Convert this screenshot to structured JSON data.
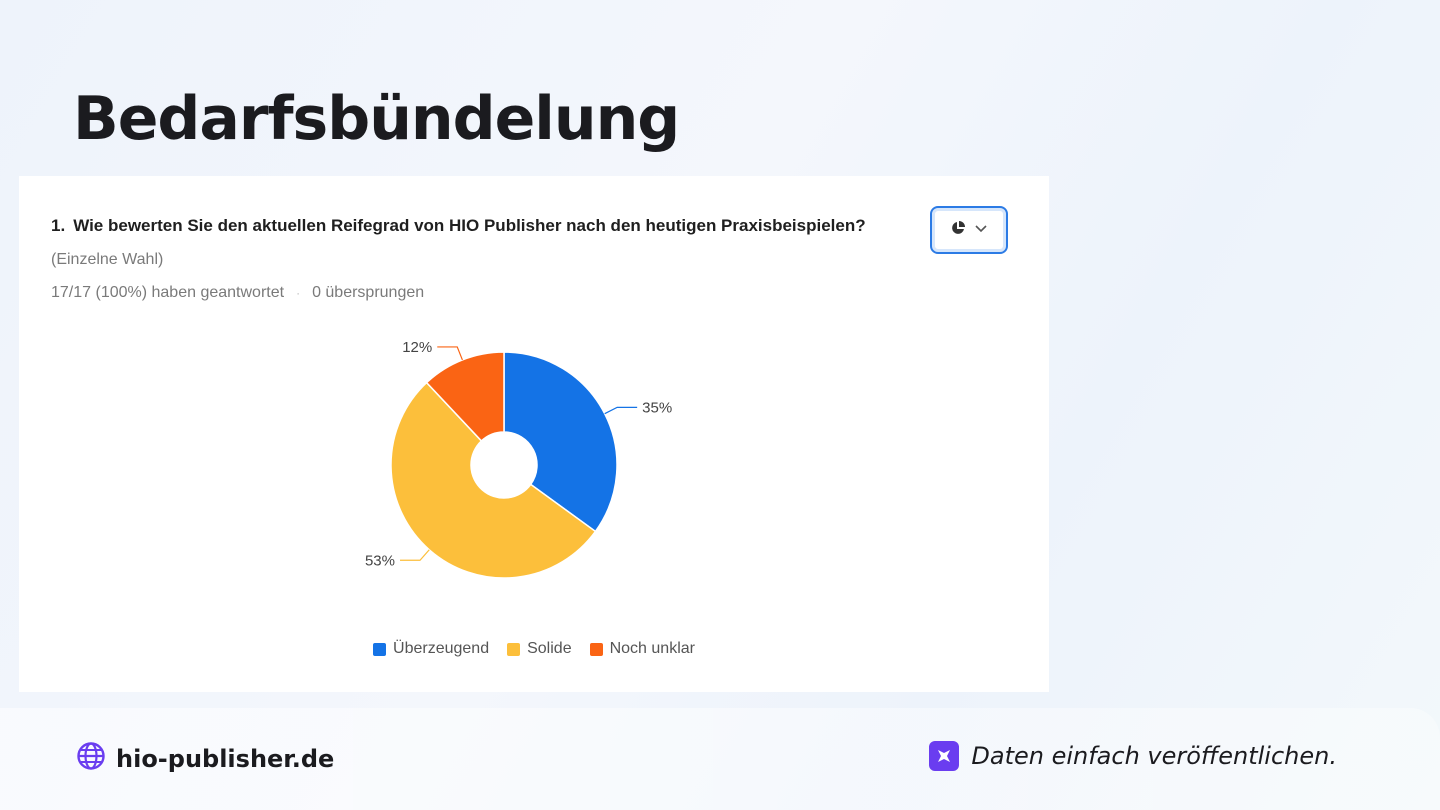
{
  "slide": {
    "title": "Bedarfsbündelung"
  },
  "survey": {
    "question_number": "1.",
    "question": "Wie bewerten Sie den aktuellen Reifegrad von HIO Publisher nach den heutigen Praxisbeispielen?",
    "subtitle": "(Einzelne Wahl)",
    "answered": "17/17 (100%) haben geantwortet",
    "skipped": "0 übersprungen",
    "separator": "·",
    "chart_type_icon": "pie-chart-icon"
  },
  "chart_data": {
    "type": "pie",
    "donut": true,
    "categories": [
      "Überzeugend",
      "Solide",
      "Noch unklar"
    ],
    "values": [
      35,
      53,
      12
    ],
    "labels": [
      "35%",
      "53%",
      "12%"
    ],
    "colors": [
      "#1473e6",
      "#fcbf3b",
      "#fa6414"
    ],
    "legend_position": "bottom"
  },
  "footer": {
    "website": "hio-publisher.de",
    "tagline": "Daten einfach veröffentlichen.",
    "website_icon": "globe-icon",
    "brand_icon": "hio-logo-icon",
    "globe_color": "#6a3df0"
  }
}
